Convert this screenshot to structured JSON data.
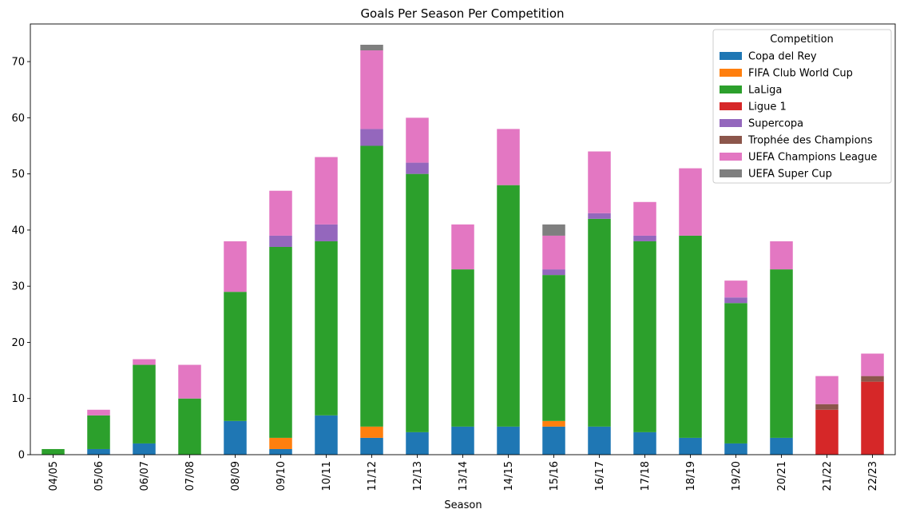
{
  "chart_data": {
    "type": "bar",
    "stacked": true,
    "title": "Goals Per Season Per Competition",
    "xlabel": "Season",
    "ylabel": "",
    "ylim": [
      0,
      76.7
    ],
    "yticks": [
      0,
      10,
      20,
      30,
      40,
      50,
      60,
      70
    ],
    "grid": false,
    "legend_title": "Competition",
    "legend_position": "top-right",
    "categories": [
      "04/05",
      "05/06",
      "06/07",
      "07/08",
      "08/09",
      "09/10",
      "10/11",
      "11/12",
      "12/13",
      "13/14",
      "14/15",
      "15/16",
      "16/17",
      "17/18",
      "18/19",
      "19/20",
      "20/21",
      "21/22",
      "22/23"
    ],
    "series": [
      {
        "name": "Copa del Rey",
        "color": "#1f77b4",
        "values": [
          0,
          1,
          2,
          0,
          6,
          1,
          7,
          3,
          4,
          5,
          5,
          5,
          5,
          4,
          3,
          2,
          3,
          0,
          0
        ]
      },
      {
        "name": "FIFA Club World Cup",
        "color": "#ff7f0e",
        "values": [
          0,
          0,
          0,
          0,
          0,
          2,
          0,
          2,
          0,
          0,
          0,
          1,
          0,
          0,
          0,
          0,
          0,
          0,
          0
        ]
      },
      {
        "name": "LaLiga",
        "color": "#2ca02c",
        "values": [
          1,
          6,
          14,
          10,
          23,
          34,
          31,
          50,
          46,
          28,
          43,
          26,
          37,
          34,
          36,
          25,
          30,
          0,
          0
        ]
      },
      {
        "name": "Ligue 1",
        "color": "#d62728",
        "values": [
          0,
          0,
          0,
          0,
          0,
          0,
          0,
          0,
          0,
          0,
          0,
          0,
          0,
          0,
          0,
          0,
          0,
          8,
          13
        ]
      },
      {
        "name": "Supercopa",
        "color": "#9467bd",
        "values": [
          0,
          0,
          0,
          0,
          0,
          2,
          3,
          3,
          2,
          0,
          0,
          1,
          1,
          1,
          0,
          1,
          0,
          0,
          0
        ]
      },
      {
        "name": "Trophée des Champions",
        "color": "#8c564b",
        "values": [
          0,
          0,
          0,
          0,
          0,
          0,
          0,
          0,
          0,
          0,
          0,
          0,
          0,
          0,
          0,
          0,
          0,
          1,
          1
        ]
      },
      {
        "name": "UEFA Champions League",
        "color": "#e377c2",
        "values": [
          0,
          1,
          1,
          6,
          9,
          8,
          12,
          14,
          8,
          8,
          10,
          6,
          11,
          6,
          12,
          3,
          5,
          5,
          4
        ]
      },
      {
        "name": "UEFA Super Cup",
        "color": "#7f7f7f",
        "values": [
          0,
          0,
          0,
          0,
          0,
          0,
          0,
          1,
          0,
          0,
          0,
          2,
          0,
          0,
          0,
          0,
          0,
          0,
          0
        ]
      }
    ]
  }
}
